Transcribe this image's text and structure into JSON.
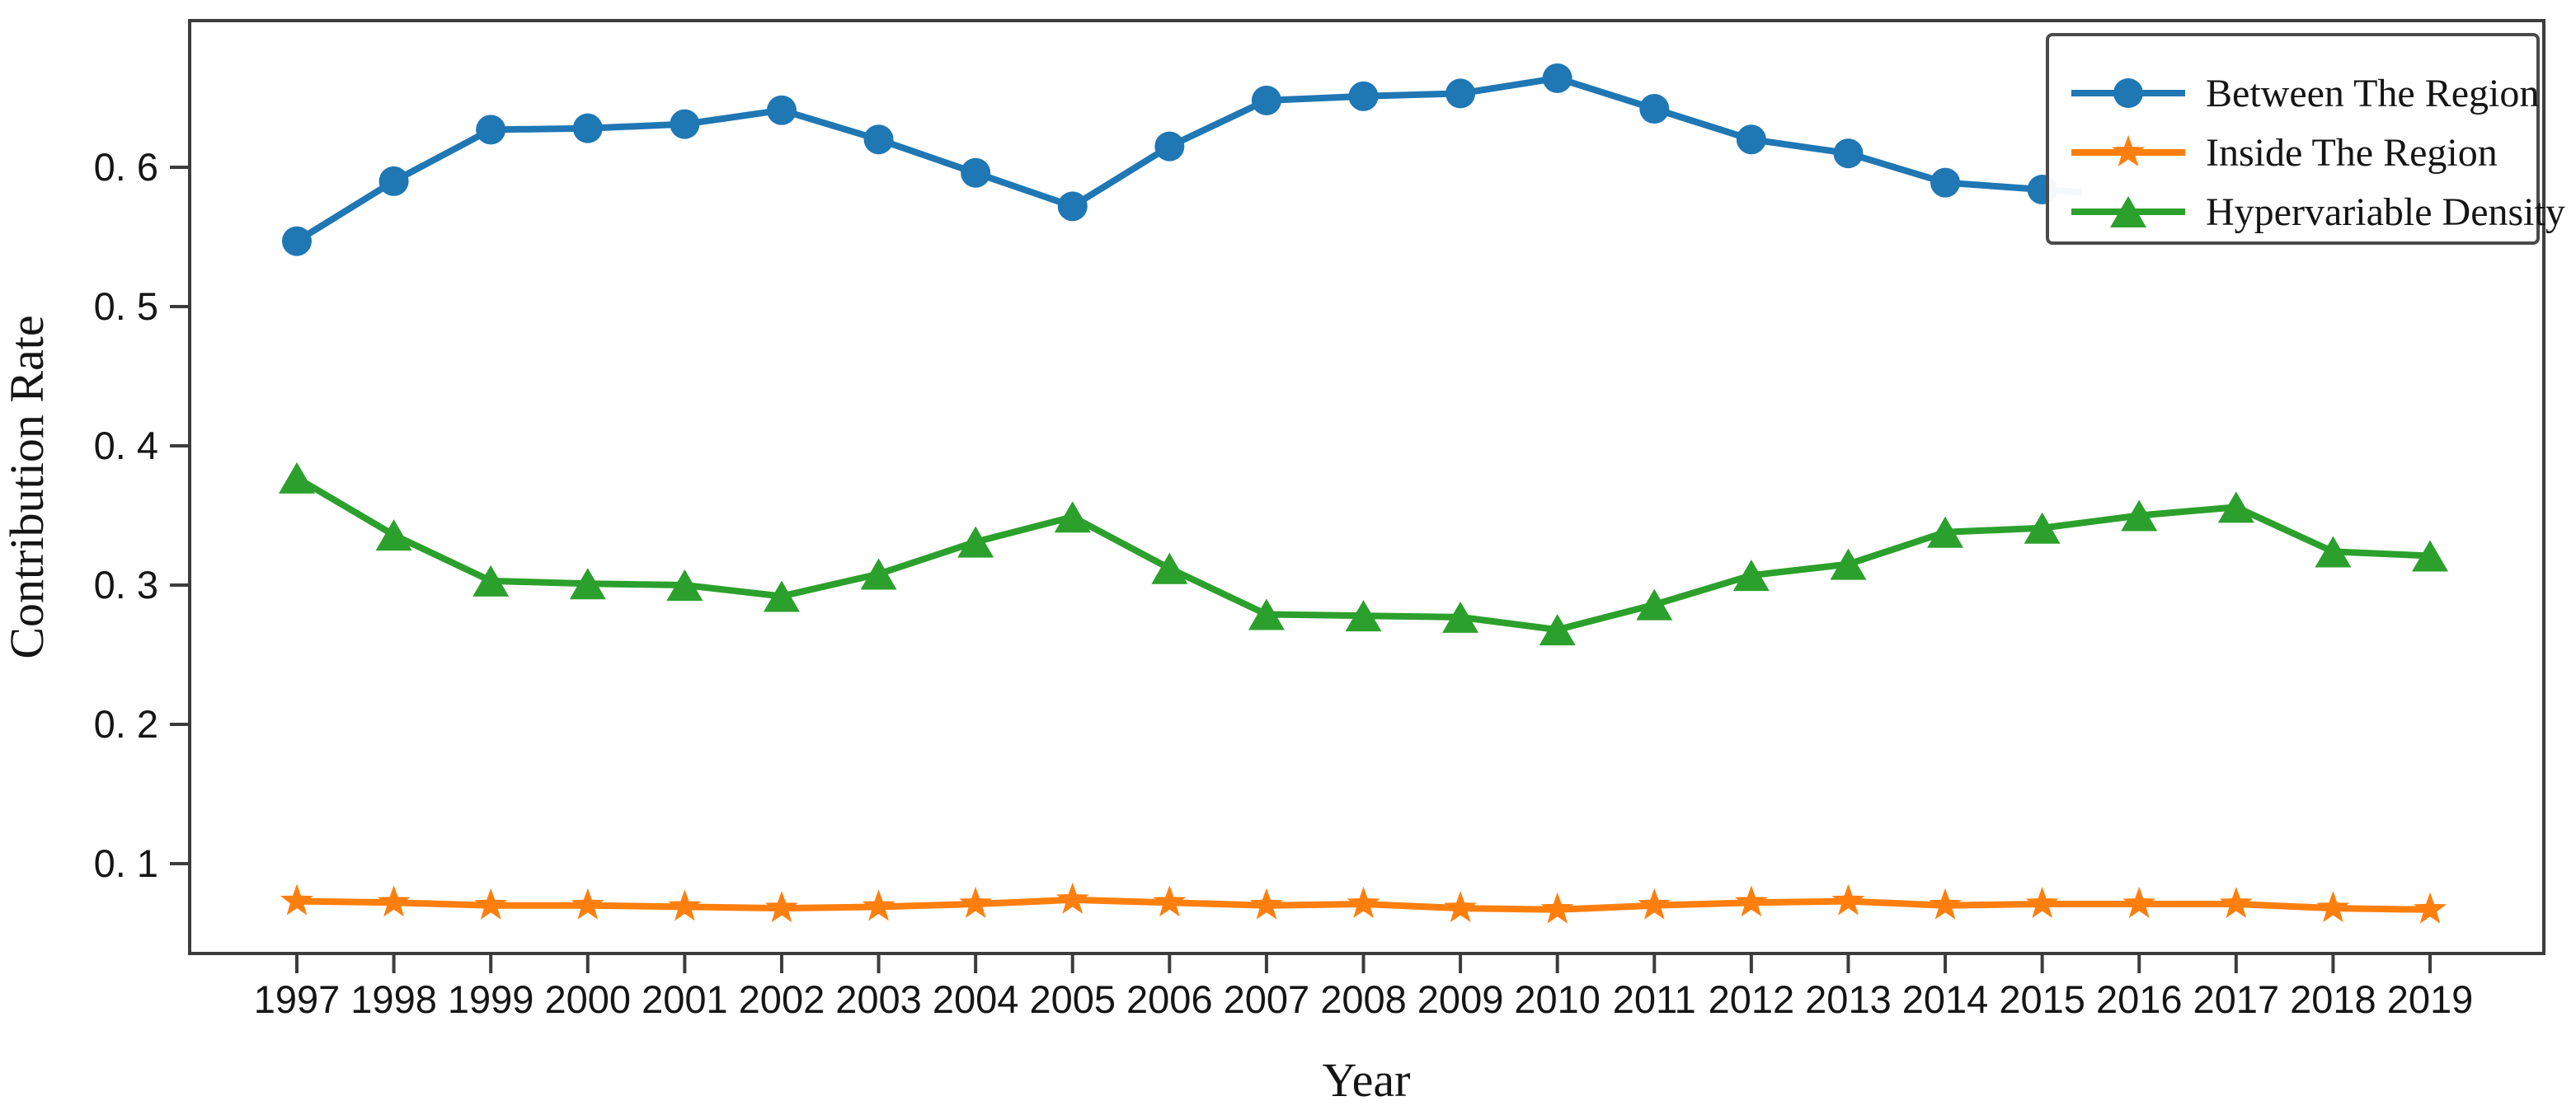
{
  "chart_data": {
    "type": "line",
    "title": "",
    "xlabel": "Year",
    "ylabel": "Contribution Rate",
    "x": [
      1997,
      1998,
      1999,
      2000,
      2001,
      2002,
      2003,
      2004,
      2005,
      2006,
      2007,
      2008,
      2009,
      2010,
      2011,
      2012,
      2013,
      2014,
      2015,
      2016,
      2017,
      2018,
      2019
    ],
    "x_tick_labels": [
      "1997",
      "1998",
      "1999",
      "2000",
      "2001",
      "2002",
      "2003",
      "2004",
      "2005",
      "2006",
      "2007",
      "2008",
      "2009",
      "2010",
      "2011",
      "2012",
      "2013",
      "2014",
      "2015",
      "2016",
      "2017",
      "2018",
      "2019"
    ],
    "y_ticks": [
      {
        "value": 0.1,
        "label": "0. 1"
      },
      {
        "value": 0.2,
        "label": "0. 2"
      },
      {
        "value": 0.3,
        "label": "0. 3"
      },
      {
        "value": 0.4,
        "label": "0. 4"
      },
      {
        "value": 0.5,
        "label": "0. 5"
      },
      {
        "value": 0.6,
        "label": "0. 6"
      }
    ],
    "ylim": [
      0.035,
      0.705
    ],
    "grid": false,
    "legend_position": "upper-right",
    "series": [
      {
        "name": "Between The Region",
        "color": "#1f77b4",
        "marker": "circle",
        "values": [
          0.547,
          0.59,
          0.627,
          0.628,
          0.631,
          0.641,
          0.62,
          0.596,
          0.572,
          0.615,
          0.648,
          0.651,
          0.653,
          0.664,
          0.642,
          0.62,
          0.61,
          0.589,
          0.584,
          null,
          null,
          null,
          null
        ],
        "continues_under_legend": true,
        "values_hidden_by_legend_years": [
          2016,
          2017,
          2018,
          2019
        ]
      },
      {
        "name": "Inside The Region",
        "color": "#ff7f0e",
        "marker": "star",
        "values": [
          0.073,
          0.072,
          0.07,
          0.07,
          0.069,
          0.068,
          0.069,
          0.071,
          0.074,
          0.072,
          0.07,
          0.071,
          0.068,
          0.067,
          0.07,
          0.072,
          0.073,
          0.07,
          0.071,
          0.071,
          0.071,
          0.068,
          0.067
        ]
      },
      {
        "name": "Hypervariable Density",
        "color": "#2ca02c",
        "marker": "triangle",
        "values": [
          0.377,
          0.336,
          0.303,
          0.301,
          0.3,
          0.292,
          0.308,
          0.331,
          0.349,
          0.312,
          0.279,
          0.278,
          0.277,
          0.268,
          0.286,
          0.307,
          0.315,
          0.338,
          0.341,
          0.35,
          0.356,
          0.324,
          0.321
        ]
      }
    ],
    "legend": [
      {
        "label": "Between The Region"
      },
      {
        "label": "Inside The Region"
      },
      {
        "label": "Hypervariable Density"
      }
    ]
  },
  "frame_color": "#3c3c3c",
  "text_color": "#151515"
}
